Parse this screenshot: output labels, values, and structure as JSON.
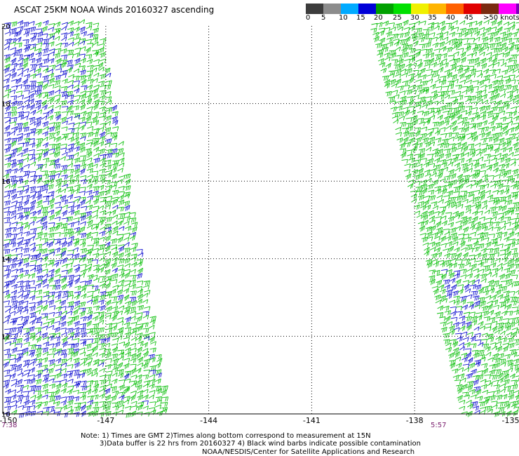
{
  "title": "ASCAT 25KM NOAA Winds 20160327 ascending",
  "legend": {
    "colors": [
      "#3c3c3c",
      "#8c8c8c",
      "#00aaff",
      "#0000d8",
      "#00a000",
      "#00e000",
      "#f0f000",
      "#ffb400",
      "#ff6000",
      "#e00000",
      "#7a2a10",
      "#ff00ff",
      "#7a00b8"
    ],
    "labels": [
      "0",
      "5",
      "10",
      "15",
      "20",
      "25",
      "30",
      "35",
      "40",
      "45",
      ">50 knots"
    ]
  },
  "map": {
    "lat_labels": [
      "20",
      "18",
      "16",
      "14",
      "12",
      "10"
    ],
    "lon_labels": [
      "-150",
      "-147",
      "-144",
      "-141",
      "-138",
      "-135"
    ],
    "lon_range": [
      -150,
      -135
    ],
    "lat_range": [
      10,
      20
    ],
    "barb_colors": {
      "low": "#1010d0",
      "mid": "#10c010"
    }
  },
  "times": {
    "left": "7:38",
    "right": "5:57"
  },
  "notes": [
    "Note: 1) Times are GMT 2)Times along bottom correspond to measurement at 15N",
    "3)Data buffer is 22 hrs from 20160327 4) Black wind barbs indicate possible contamination"
  ],
  "credit": "NOAA/NESDIS/Center for Satellite Applications and Research"
}
